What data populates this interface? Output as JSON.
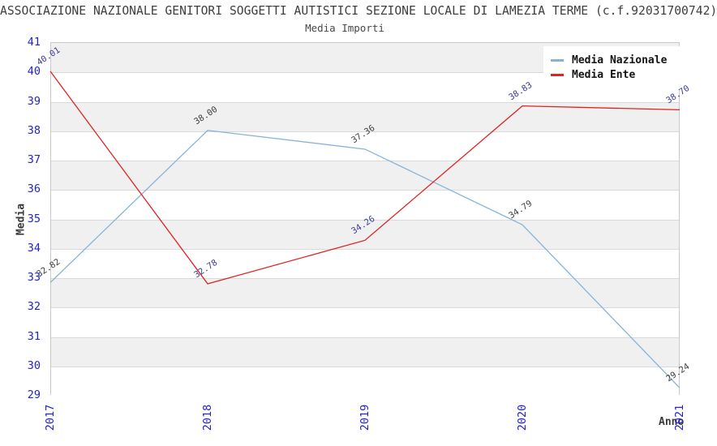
{
  "title": "ASSOCIAZIONE NAZIONALE GENITORI SOGGETTI AUTISTICI SEZIONE LOCALE DI LAMEZIA TERME (c.f.92031700742)",
  "subtitle": "Media Importi",
  "axes": {
    "ylabel": "Media",
    "xlabel": "Anno",
    "tick_color": "#2323c8"
  },
  "legend": {
    "items": [
      {
        "label": "Media Nazionale"
      },
      {
        "label": "Media Ente"
      }
    ]
  },
  "chart_data": {
    "type": "line",
    "title": "Media Importi",
    "x_categories": [
      "2017",
      "2018",
      "2019",
      "2020",
      "2021"
    ],
    "series": [
      {
        "name": "Media Nazionale",
        "color": "#85b3dc",
        "label_color": "#3c3c3c",
        "values": [
          32.82,
          38.0,
          37.36,
          34.79,
          29.24
        ]
      },
      {
        "name": "Media Ente",
        "color": "#e02222",
        "label_color": "#3a3a9c",
        "values": [
          40.01,
          32.78,
          34.26,
          38.83,
          38.7
        ]
      }
    ],
    "ylim": [
      29,
      41
    ],
    "ytick_step": 1,
    "xlabel": "Anno",
    "ylabel": "Media",
    "grid": "horizontal-bands",
    "band_colors": [
      "#f0f0f0",
      "#ffffff"
    ],
    "legend_position": "top-right",
    "point_labels": true
  }
}
